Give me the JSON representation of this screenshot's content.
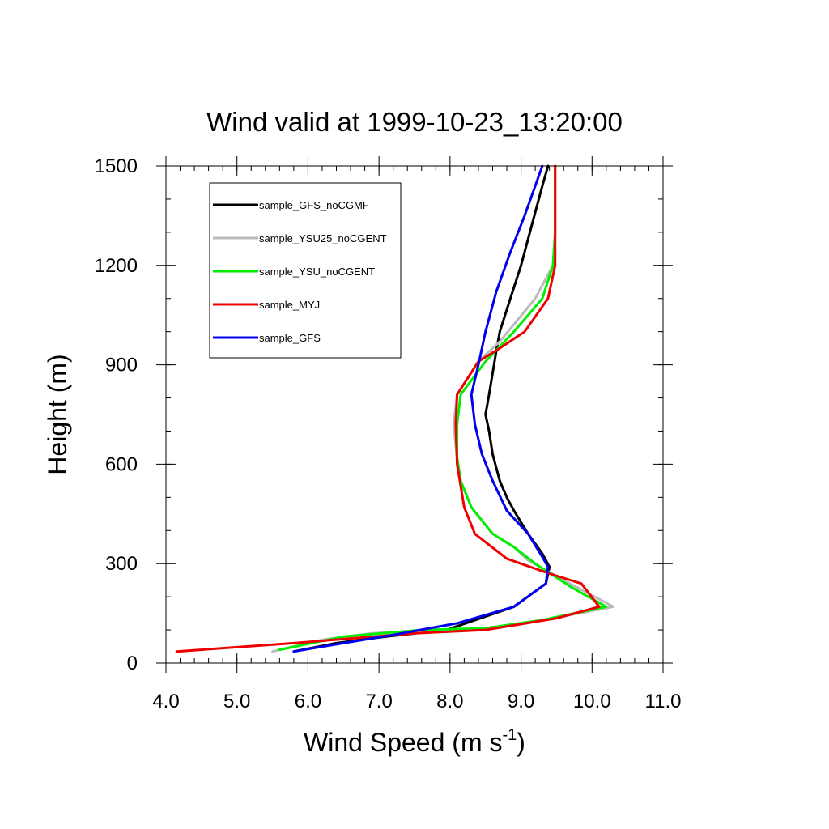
{
  "chart_data": {
    "type": "line",
    "title": "Wind valid at 1999-10-23_13:20:00",
    "xlabel": "Wind Speed (m s",
    "xlabel_exponent": "-1",
    "xlabel_close": ")",
    "ylabel": "Height (m)",
    "xlim": [
      4.0,
      11.0
    ],
    "ylim": [
      0,
      1500
    ],
    "xticks": [
      4.0,
      5.0,
      6.0,
      7.0,
      8.0,
      9.0,
      10.0,
      11.0
    ],
    "xtick_labels": [
      "4.0",
      "5.0",
      "6.0",
      "7.0",
      "8.0",
      "9.0",
      "10.0",
      "11.0"
    ],
    "yticks": [
      0,
      300,
      600,
      900,
      1200,
      1500
    ],
    "ytick_labels": [
      "0",
      "300",
      "600",
      "900",
      "1200",
      "1500"
    ],
    "grid": false,
    "legend_position": "top-left",
    "series": [
      {
        "name": "sample_GFS_noCGMF",
        "color": "#000000",
        "points": [
          [
            5.8,
            35
          ],
          [
            6.4,
            60
          ],
          [
            7.1,
            80
          ],
          [
            7.95,
            100
          ],
          [
            8.9,
            170
          ],
          [
            9.35,
            240
          ],
          [
            9.4,
            290
          ],
          [
            9.3,
            330
          ],
          [
            9.1,
            390
          ],
          [
            8.9,
            460
          ],
          [
            8.8,
            500
          ],
          [
            8.7,
            550
          ],
          [
            8.6,
            630
          ],
          [
            8.55,
            700
          ],
          [
            8.5,
            750
          ],
          [
            8.55,
            810
          ],
          [
            8.65,
            940
          ],
          [
            8.7,
            1000
          ],
          [
            8.85,
            1100
          ],
          [
            9.0,
            1200
          ],
          [
            9.15,
            1320
          ],
          [
            9.3,
            1440
          ],
          [
            9.38,
            1500
          ]
        ]
      },
      {
        "name": "sample_YSU25_noCGENT",
        "color": "#bbbbbb",
        "points": [
          [
            5.5,
            35
          ],
          [
            6.2,
            70
          ],
          [
            6.9,
            90
          ],
          [
            7.8,
            100
          ],
          [
            8.4,
            100
          ],
          [
            9.2,
            125
          ],
          [
            10.3,
            170
          ],
          [
            9.6,
            250
          ],
          [
            9.1,
            310
          ],
          [
            8.9,
            350
          ],
          [
            8.6,
            390
          ],
          [
            8.3,
            470
          ],
          [
            8.15,
            550
          ],
          [
            8.1,
            620
          ],
          [
            8.05,
            720
          ],
          [
            8.1,
            810
          ],
          [
            8.4,
            910
          ],
          [
            8.7,
            970
          ],
          [
            9.2,
            1100
          ],
          [
            9.45,
            1200
          ],
          [
            9.48,
            1300
          ],
          [
            9.48,
            1400
          ],
          [
            9.48,
            1500
          ]
        ]
      },
      {
        "name": "sample_YSU_noCGENT",
        "color": "#00ee00",
        "points": [
          [
            5.6,
            40
          ],
          [
            6.5,
            80
          ],
          [
            7.6,
            100
          ],
          [
            8.5,
            105
          ],
          [
            9.3,
            130
          ],
          [
            10.2,
            170
          ],
          [
            9.7,
            230
          ],
          [
            9.2,
            300
          ],
          [
            8.9,
            350
          ],
          [
            8.6,
            390
          ],
          [
            8.3,
            470
          ],
          [
            8.15,
            550
          ],
          [
            8.1,
            620
          ],
          [
            8.1,
            720
          ],
          [
            8.15,
            810
          ],
          [
            8.5,
            910
          ],
          [
            8.9,
            1000
          ],
          [
            9.3,
            1100
          ],
          [
            9.45,
            1200
          ],
          [
            9.48,
            1300
          ],
          [
            9.48,
            1400
          ],
          [
            9.48,
            1500
          ]
        ]
      },
      {
        "name": "sample_MYJ",
        "color": "#ee0000",
        "points": [
          [
            4.15,
            35
          ],
          [
            5.8,
            60
          ],
          [
            7.5,
            90
          ],
          [
            8.5,
            100
          ],
          [
            9.5,
            135
          ],
          [
            10.1,
            170
          ],
          [
            9.85,
            240
          ],
          [
            9.4,
            270
          ],
          [
            8.8,
            315
          ],
          [
            8.35,
            390
          ],
          [
            8.2,
            470
          ],
          [
            8.1,
            600
          ],
          [
            8.08,
            720
          ],
          [
            8.1,
            810
          ],
          [
            8.4,
            910
          ],
          [
            8.7,
            950
          ],
          [
            9.05,
            1000
          ],
          [
            9.38,
            1100
          ],
          [
            9.48,
            1200
          ],
          [
            9.48,
            1300
          ],
          [
            9.48,
            1400
          ],
          [
            9.48,
            1500
          ]
        ]
      },
      {
        "name": "sample_GFS",
        "color": "#0000ee",
        "points": [
          [
            5.8,
            35
          ],
          [
            6.5,
            60
          ],
          [
            7.2,
            85
          ],
          [
            8.1,
            120
          ],
          [
            8.9,
            170
          ],
          [
            9.35,
            240
          ],
          [
            9.38,
            290
          ],
          [
            9.3,
            320
          ],
          [
            9.1,
            390
          ],
          [
            8.8,
            460
          ],
          [
            8.6,
            550
          ],
          [
            8.45,
            630
          ],
          [
            8.35,
            720
          ],
          [
            8.3,
            810
          ],
          [
            8.4,
            900
          ],
          [
            8.5,
            1000
          ],
          [
            8.65,
            1120
          ],
          [
            8.85,
            1240
          ],
          [
            9.05,
            1350
          ],
          [
            9.2,
            1440
          ],
          [
            9.3,
            1500
          ]
        ]
      }
    ]
  }
}
